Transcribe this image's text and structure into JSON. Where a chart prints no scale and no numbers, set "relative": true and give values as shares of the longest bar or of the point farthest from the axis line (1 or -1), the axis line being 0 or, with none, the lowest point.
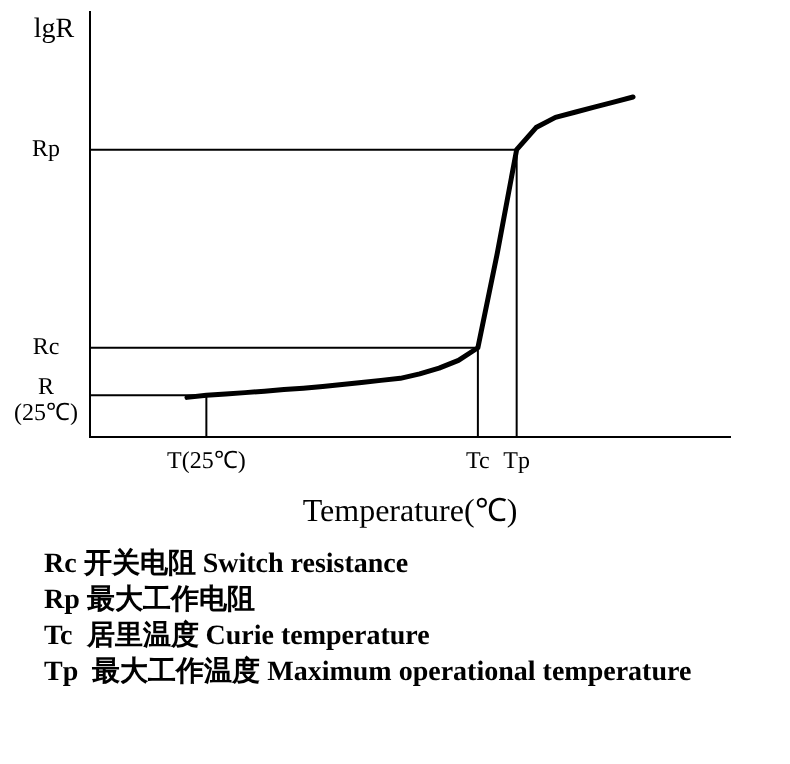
{
  "chart_data": {
    "type": "line",
    "relative": true,
    "xlabel": "Temperature(℃)",
    "ylabel": "lgR",
    "categories": [
      null,
      null,
      null,
      null,
      null,
      null,
      "T(25℃)",
      null,
      null,
      null,
      null,
      null,
      null,
      null,
      null,
      null,
      null,
      null,
      null,
      null,
      "Tc",
      null,
      "Tp",
      null,
      null,
      null,
      null,
      null,
      null,
      null,
      null,
      null,
      null,
      null
    ],
    "series": [
      {
        "color": "#000000",
        "values": [
          null,
          null,
          null,
          null,
          null,
          0.116,
          0.122,
          0.126,
          0.13,
          0.134,
          0.139,
          0.143,
          0.148,
          0.154,
          0.16,
          0.166,
          0.172,
          0.185,
          0.202,
          0.225,
          0.262,
          0.54,
          0.845,
          0.91,
          0.94,
          0.955,
          0.97,
          0.985,
          1.0,
          null,
          null,
          null,
          null,
          null
        ]
      }
    ],
    "tick_labels": "x",
    "grid": false,
    "legend": false,
    "marker": "none",
    "line_style": "solid",
    "ref_lines": [
      {
        "axis": "y",
        "value": 0.122,
        "label": "R\n(25℃)",
        "color": "#000000"
      },
      {
        "axis": "y",
        "value": 0.262,
        "label": "Rc",
        "color": "#000000"
      },
      {
        "axis": "y",
        "value": 0.845,
        "label": "Rp",
        "color": "#000000"
      },
      {
        "axis": "x",
        "value": "T(25℃)",
        "color": "#000000"
      },
      {
        "axis": "x",
        "value": "Tc",
        "color": "#000000"
      },
      {
        "axis": "x",
        "value": "Tp",
        "color": "#000000"
      }
    ],
    "annotations": [
      "Rc 开关电阻 Switch resistance",
      "Rp 最大工作电阻",
      "Tc  居里温度 Curie temperature",
      "Tp  最大工作温度 Maximum operational temperature"
    ]
  }
}
